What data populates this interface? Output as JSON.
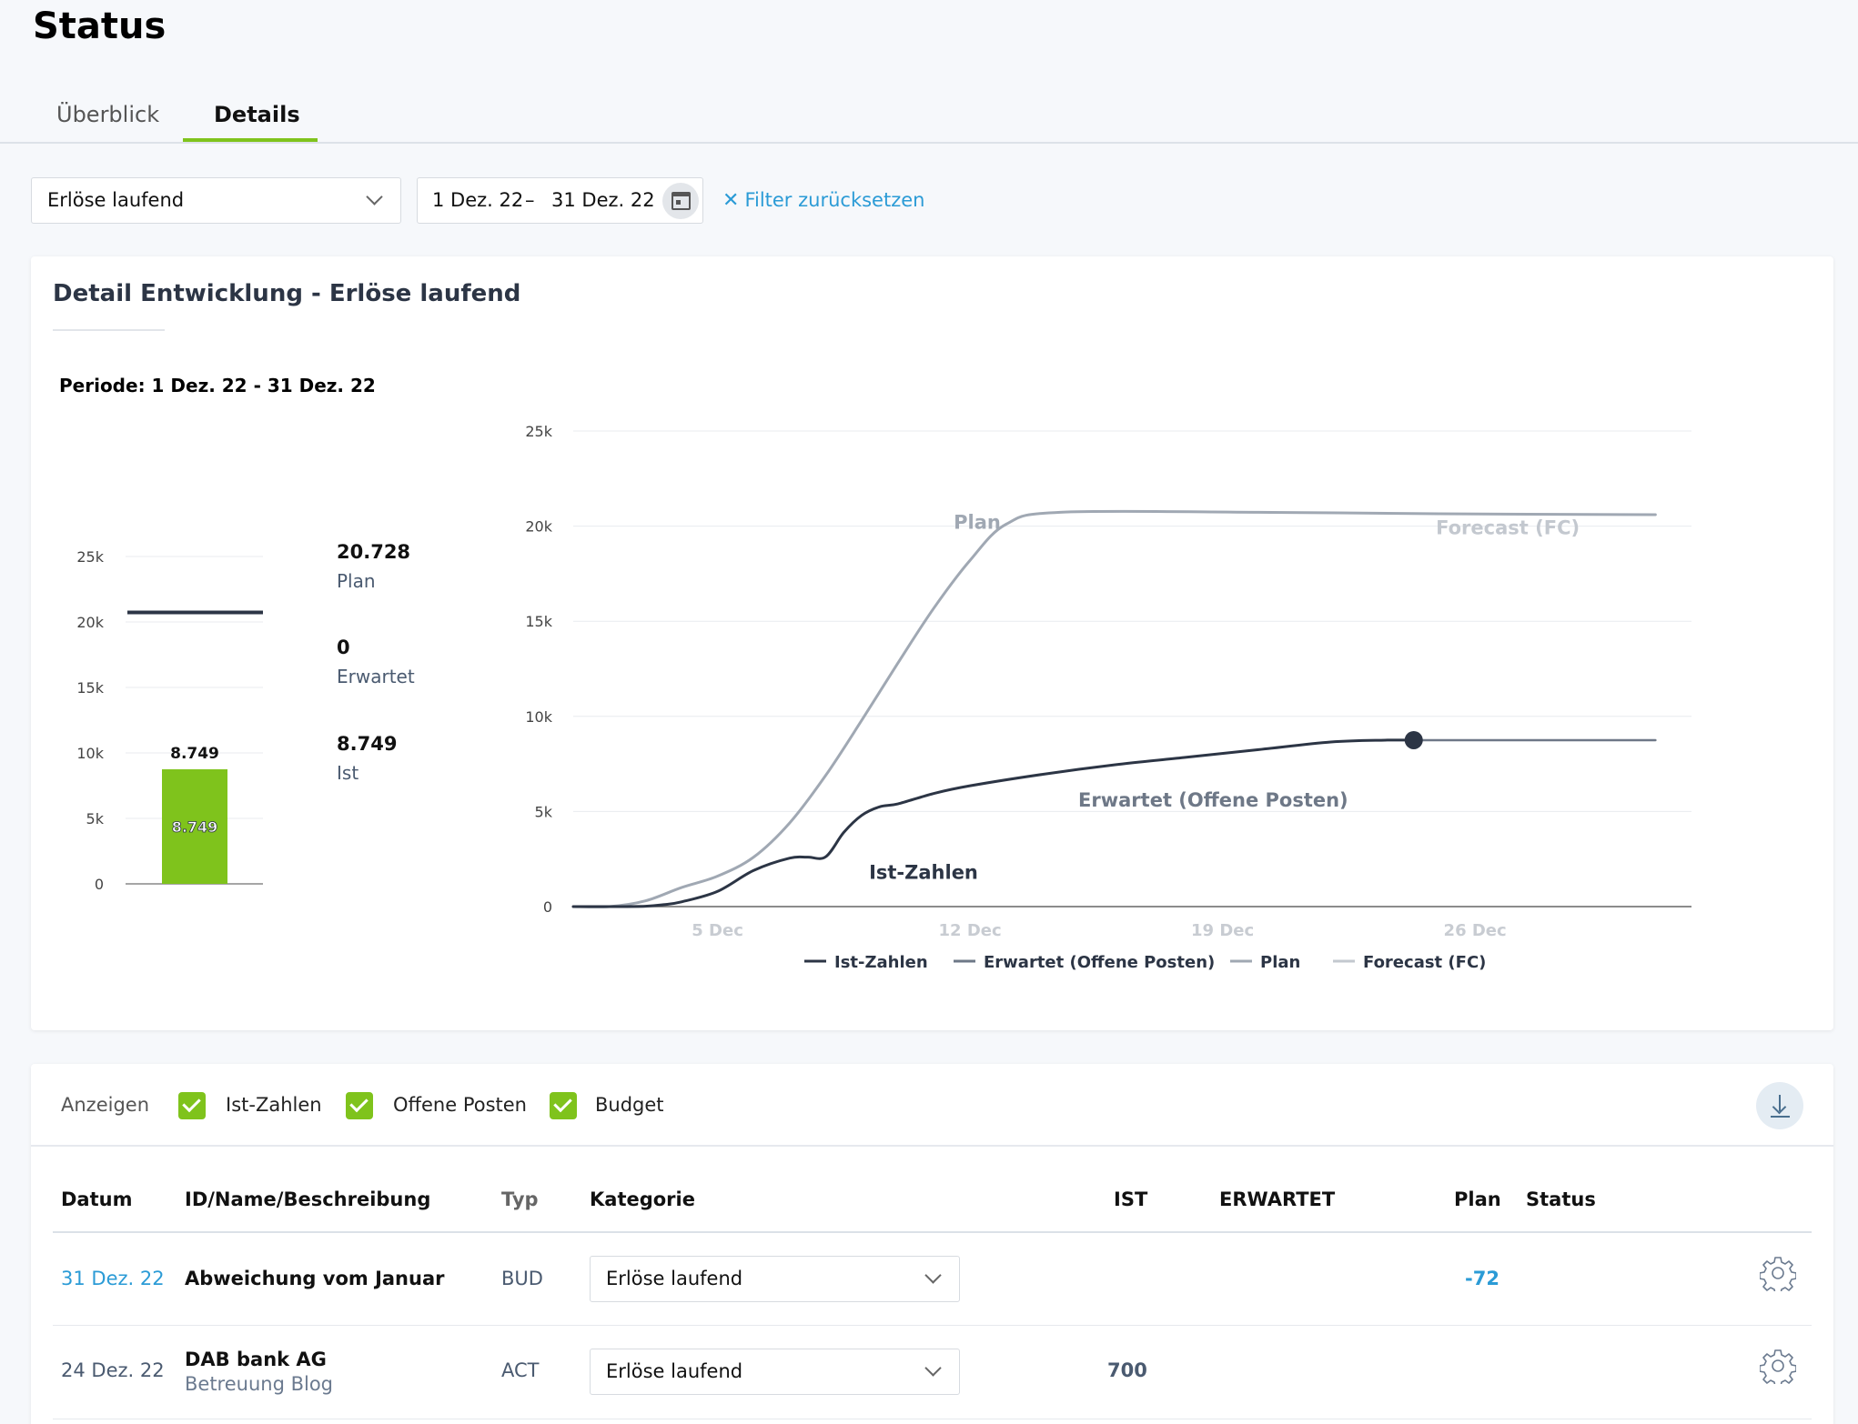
{
  "page": {
    "title": "Status"
  },
  "tabs": [
    {
      "label": "Überblick"
    },
    {
      "label": "Details"
    }
  ],
  "filters": {
    "category": "Erlöse laufend",
    "date_from": "1 Dez. 22",
    "date_sep": "–",
    "date_to": "31 Dez. 22",
    "reset_label": "Filter zurücksetzen"
  },
  "detail": {
    "title": "Detail Entwicklung - Erlöse laufend",
    "periode": "Periode: 1 Dez. 22 - 31 Dez. 22"
  },
  "colors": {
    "accent_green": "#7fc31c",
    "link_blue": "#2b9bd6",
    "dark_line": "#2c3545",
    "plan_gray": "#a0a8b3"
  },
  "chart_data": [
    {
      "type": "bar",
      "categories": [
        ""
      ],
      "values": [
        8749
      ],
      "ylim": [
        0,
        25000
      ],
      "yticks": [
        "0",
        "5k",
        "10k",
        "15k",
        "20k",
        "25k"
      ],
      "plan_line": 20728,
      "bar_label_top": "8.749",
      "bar_label_inner": "8.749",
      "summary": [
        {
          "value": "20.728",
          "label": "Plan"
        },
        {
          "value": "0",
          "label": "Erwartet"
        },
        {
          "value": "8.749",
          "label": "Ist"
        }
      ]
    },
    {
      "type": "line",
      "x_range": [
        "2022-12-01",
        "2022-12-31"
      ],
      "ylim": [
        0,
        25000
      ],
      "yticks": [
        "0",
        "5k",
        "10k",
        "15k",
        "20k",
        "25k"
      ],
      "xticks": [
        "5 Dec",
        "12 Dec",
        "19 Dec",
        "26 Dec"
      ],
      "xtick_values": [
        5,
        12,
        19,
        26
      ],
      "x_domain": [
        1,
        32
      ],
      "series": [
        {
          "name": "Ist-Zahlen",
          "color": "#2c3545",
          "x": [
            1,
            2,
            3,
            3.5,
            4,
            5,
            6,
            7,
            7.5,
            8,
            8.5,
            9,
            9.5,
            10,
            11,
            12,
            14,
            16,
            18,
            20,
            22,
            23.5,
            24.3
          ],
          "y": [
            0,
            0,
            20,
            100,
            250,
            800,
            1900,
            2550,
            2600,
            2620,
            3900,
            4800,
            5250,
            5400,
            5950,
            6350,
            6950,
            7450,
            7850,
            8250,
            8650,
            8749,
            8749
          ]
        },
        {
          "name": "Erwartet (Offene Posten)",
          "color": "#6e7887",
          "x": [
            24.3,
            31
          ],
          "y": [
            8749,
            8749
          ]
        },
        {
          "name": "Plan",
          "color": "#a0a8b3",
          "x": [
            1,
            2,
            3,
            4,
            5,
            6,
            7,
            8,
            9,
            10,
            11,
            12,
            13,
            14.5,
            20,
            25,
            31
          ],
          "y": [
            0,
            0,
            300,
            1000,
            1600,
            2600,
            4400,
            6900,
            9800,
            12800,
            15700,
            18200,
            20100,
            20728,
            20728,
            20650,
            20600
          ]
        },
        {
          "name": "Forecast (FC)",
          "color": "#c3c8cf",
          "x": [],
          "y": []
        }
      ],
      "annotations": [
        {
          "text": "Plan",
          "x": 12.2,
          "y": 20200
        },
        {
          "text": "Forecast (FC)",
          "x": 28.9,
          "y": 19900
        },
        {
          "text": "Erwartet (Offene Posten)",
          "x": 15,
          "y": 5600
        },
        {
          "text": "Ist-Zahlen",
          "x": 9.2,
          "y": 1800
        }
      ],
      "endpoint": {
        "x": 24.3,
        "y": 8749
      },
      "legend": [
        {
          "label": "Ist-Zahlen",
          "color": "#2c3545"
        },
        {
          "label": "Erwartet (Offene Posten)",
          "color": "#6e7887"
        },
        {
          "label": "Plan",
          "color": "#a0a8b3"
        },
        {
          "label": "Forecast (FC)",
          "color": "#c3c8cf"
        }
      ]
    }
  ],
  "table": {
    "show_label": "Anzeigen",
    "toggles": [
      {
        "label": "Ist-Zahlen",
        "checked": true
      },
      {
        "label": "Offene Posten",
        "checked": true
      },
      {
        "label": "Budget",
        "checked": true
      }
    ],
    "columns": [
      "Datum",
      "ID/Name/Beschreibung",
      "Typ",
      "Kategorie",
      "IST",
      "ERWARTET",
      "Plan",
      "Status"
    ],
    "rows": [
      {
        "date": "31 Dez. 22",
        "name": "Abweichung vom Januar",
        "sub": "",
        "typ": "BUD",
        "kategorie": "Erlöse laufend",
        "ist": "",
        "erwartet": "",
        "plan": "-72",
        "status": ""
      },
      {
        "date": "24 Dez. 22",
        "name": "DAB bank AG",
        "sub": "Betreuung Blog",
        "typ": "ACT",
        "kategorie": "Erlöse laufend",
        "ist": "700",
        "erwartet": "",
        "plan": "",
        "status": ""
      }
    ]
  }
}
